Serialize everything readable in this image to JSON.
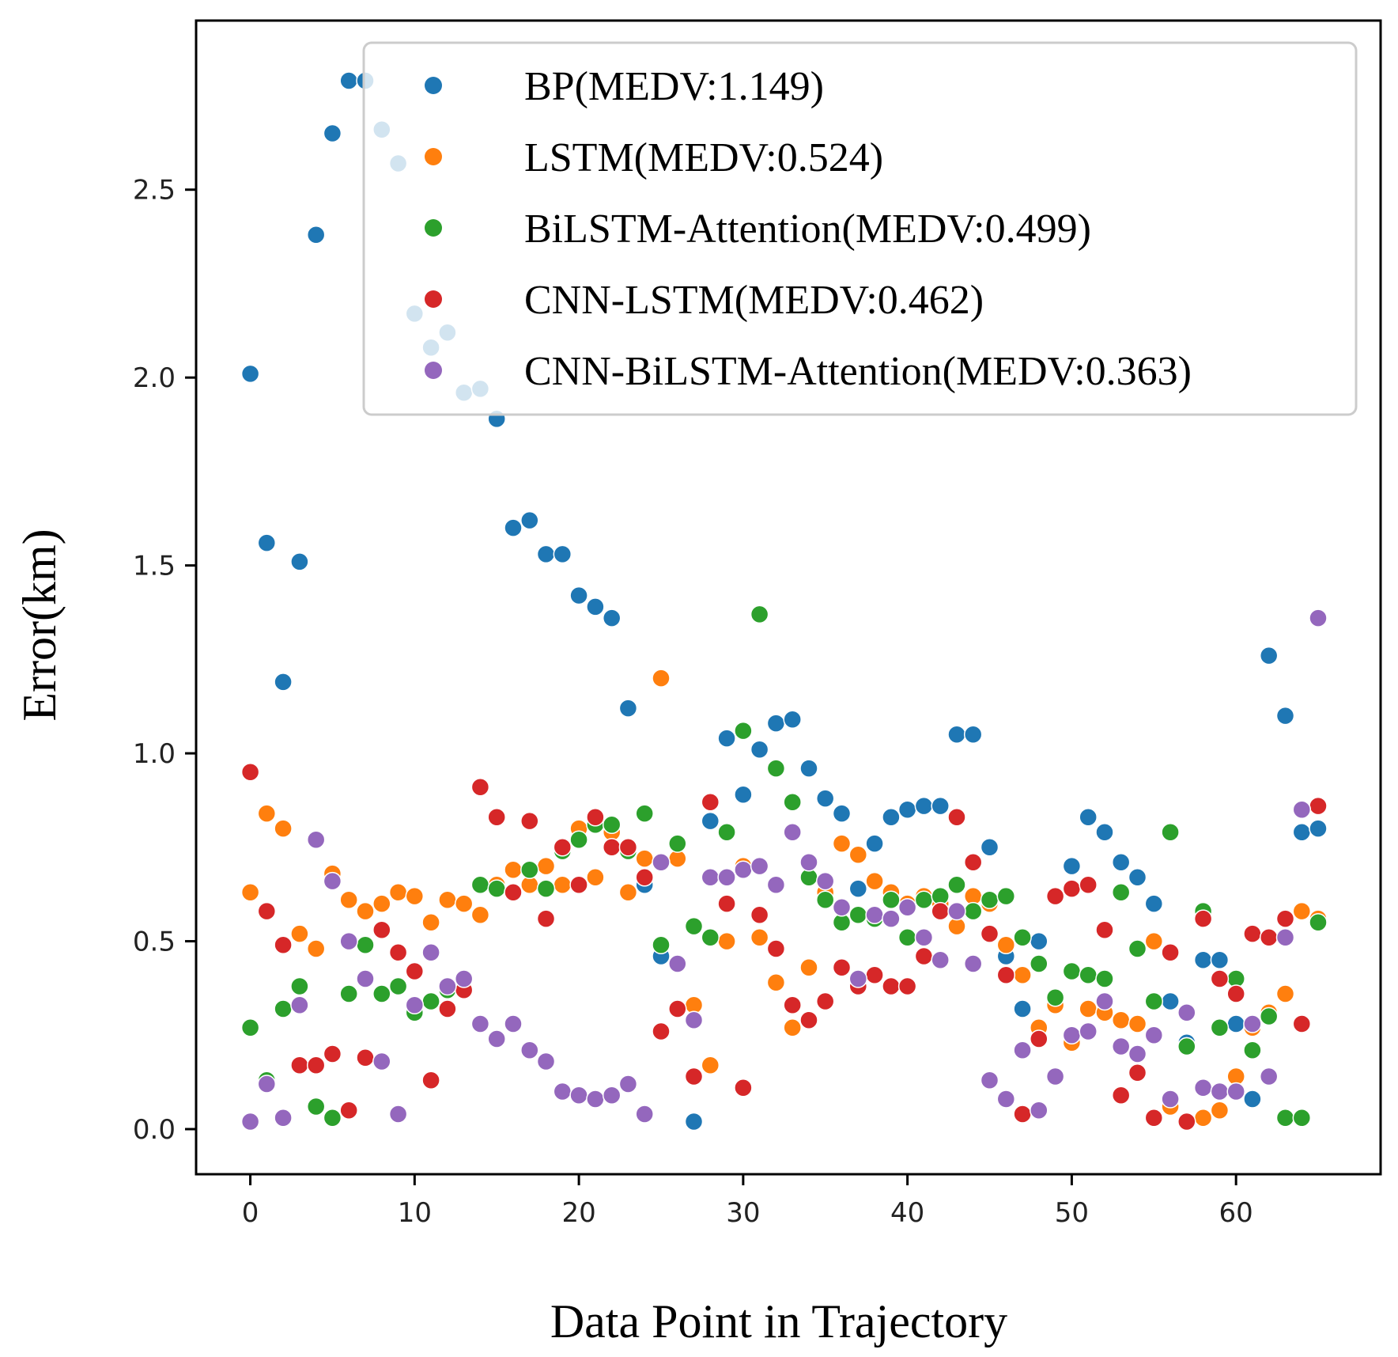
{
  "chart_data": {
    "type": "scatter",
    "title": "",
    "xlabel": "Data Point in Trajectory",
    "ylabel": "Error(km)",
    "xlim": [
      -3.3,
      68.8
    ],
    "ylim": [
      -0.12,
      2.95
    ],
    "xticks": [
      0,
      10,
      20,
      30,
      40,
      50,
      60
    ],
    "yticks": [
      0.0,
      0.5,
      1.0,
      1.5,
      2.0,
      2.5
    ],
    "xtick_labels": [
      "0",
      "10",
      "20",
      "30",
      "40",
      "50",
      "60"
    ],
    "ytick_labels": [
      "0.0",
      "0.5",
      "1.0",
      "1.5",
      "2.0",
      "2.5"
    ],
    "grid": false,
    "legend_position": "top-right",
    "x": [
      0,
      1,
      2,
      3,
      4,
      5,
      6,
      7,
      8,
      9,
      10,
      11,
      12,
      13,
      14,
      15,
      16,
      17,
      18,
      19,
      20,
      21,
      22,
      23,
      24,
      25,
      26,
      27,
      28,
      29,
      30,
      31,
      32,
      33,
      34,
      35,
      36,
      37,
      38,
      39,
      40,
      41,
      42,
      43,
      44,
      45,
      46,
      47,
      48,
      49,
      50,
      51,
      52,
      53,
      54,
      55,
      56,
      57,
      58,
      59,
      60,
      61,
      62,
      63,
      64,
      65
    ],
    "series": [
      {
        "name": "BP(MEDV:1.149)",
        "color": "#1f77b4",
        "values": [
          2.01,
          1.56,
          1.19,
          1.51,
          2.38,
          2.65,
          2.79,
          2.79,
          2.66,
          2.57,
          2.17,
          2.08,
          2.12,
          1.96,
          1.97,
          1.89,
          1.6,
          1.62,
          1.53,
          1.53,
          1.42,
          1.39,
          1.36,
          1.12,
          0.65,
          0.46,
          0.72,
          0.02,
          0.82,
          1.04,
          0.89,
          1.01,
          1.08,
          1.09,
          0.96,
          0.88,
          0.84,
          0.64,
          0.76,
          0.83,
          0.85,
          0.86,
          0.86,
          1.05,
          1.05,
          0.75,
          0.46,
          0.32,
          0.5,
          0.62,
          0.7,
          0.83,
          0.79,
          0.71,
          0.67,
          0.6,
          0.34,
          0.23,
          0.45,
          0.45,
          0.28,
          0.08,
          1.26,
          1.1,
          0.79,
          0.8
        ]
      },
      {
        "name": "LSTM(MEDV:0.524)",
        "color": "#ff7f0e",
        "values": [
          0.63,
          0.84,
          0.8,
          0.52,
          0.48,
          0.68,
          0.61,
          0.58,
          0.6,
          0.63,
          0.62,
          0.55,
          0.61,
          0.6,
          0.57,
          0.65,
          0.69,
          0.65,
          0.7,
          0.65,
          0.8,
          0.67,
          0.79,
          0.63,
          0.72,
          1.2,
          0.72,
          0.33,
          0.17,
          0.5,
          0.7,
          0.51,
          0.39,
          0.27,
          0.43,
          0.63,
          0.76,
          0.73,
          0.66,
          0.63,
          0.6,
          0.62,
          0.6,
          0.54,
          0.62,
          0.6,
          0.49,
          0.41,
          0.27,
          0.33,
          0.23,
          0.32,
          0.31,
          0.29,
          0.28,
          0.5,
          0.06,
          0.22,
          0.03,
          0.05,
          0.14,
          0.27,
          0.31,
          0.36,
          0.58,
          0.56
        ]
      },
      {
        "name": "BiLSTM-Attention(MEDV:0.499)",
        "color": "#2ca02c",
        "values": [
          0.27,
          0.13,
          0.32,
          0.38,
          0.06,
          0.03,
          0.36,
          0.49,
          0.36,
          0.38,
          0.31,
          0.34,
          0.37,
          0.4,
          0.65,
          0.64,
          0.63,
          0.69,
          0.64,
          0.74,
          0.77,
          0.81,
          0.81,
          0.74,
          0.84,
          0.49,
          0.76,
          0.54,
          0.51,
          0.79,
          1.06,
          1.37,
          0.96,
          0.87,
          0.67,
          0.61,
          0.55,
          0.57,
          0.56,
          0.61,
          0.51,
          0.61,
          0.62,
          0.65,
          0.58,
          0.61,
          0.62,
          0.51,
          0.44,
          0.35,
          0.42,
          0.41,
          0.4,
          0.63,
          0.48,
          0.34,
          0.79,
          0.22,
          0.58,
          0.27,
          0.4,
          0.21,
          0.3,
          0.03,
          0.03,
          0.55
        ]
      },
      {
        "name": "CNN-LSTM(MEDV:0.462)",
        "color": "#d62728",
        "values": [
          0.95,
          0.58,
          0.49,
          0.17,
          0.17,
          0.2,
          0.05,
          0.19,
          0.53,
          0.47,
          0.42,
          0.13,
          0.32,
          0.37,
          0.91,
          0.83,
          0.63,
          0.82,
          0.56,
          0.75,
          0.65,
          0.83,
          0.75,
          0.75,
          0.67,
          0.26,
          0.32,
          0.14,
          0.87,
          0.6,
          0.11,
          0.57,
          0.48,
          0.33,
          0.29,
          0.34,
          0.43,
          0.38,
          0.41,
          0.38,
          0.38,
          0.46,
          0.58,
          0.83,
          0.71,
          0.52,
          0.41,
          0.04,
          0.24,
          0.62,
          0.64,
          0.65,
          0.53,
          0.09,
          0.15,
          0.03,
          0.47,
          0.02,
          0.56,
          0.4,
          0.36,
          0.52,
          0.51,
          0.56,
          0.28,
          0.86
        ]
      },
      {
        "name": "CNN-BiLSTM-Attention(MEDV:0.363)",
        "color": "#9467bd",
        "values": [
          0.02,
          0.12,
          0.03,
          0.33,
          0.77,
          0.66,
          0.5,
          0.4,
          0.18,
          0.04,
          0.33,
          0.47,
          0.38,
          0.4,
          0.28,
          0.24,
          0.28,
          0.21,
          0.18,
          0.1,
          0.09,
          0.08,
          0.09,
          0.12,
          0.04,
          0.71,
          0.44,
          0.29,
          0.67,
          0.67,
          0.69,
          0.7,
          0.65,
          0.79,
          0.71,
          0.66,
          0.59,
          0.4,
          0.57,
          0.56,
          0.59,
          0.51,
          0.45,
          0.58,
          0.44,
          0.13,
          0.08,
          0.21,
          0.05,
          0.14,
          0.25,
          0.26,
          0.34,
          0.22,
          0.2,
          0.25,
          0.08,
          0.31,
          0.11,
          0.1,
          0.1,
          0.28,
          0.14,
          0.51,
          0.85,
          1.36
        ]
      }
    ]
  }
}
